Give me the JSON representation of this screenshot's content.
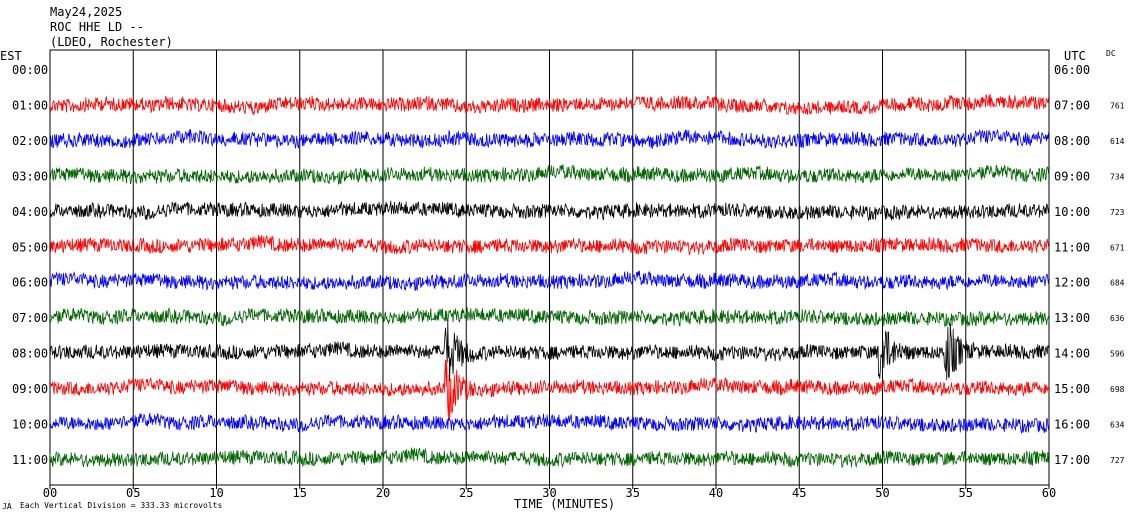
{
  "header": {
    "date": "May24,2025",
    "station": "ROC HHE LD --",
    "network": "(LDEO, Rochester)"
  },
  "axes": {
    "left_tz": "EST",
    "right_tz": "UTC",
    "dc_header": "DC",
    "xlabel": "TIME (MINUTES)",
    "scale_note_prefix": "JA",
    "scale_note": "Each Vertical Division =  333.33 microvolts"
  },
  "colors": [
    "#ff0000",
    "#0000ff",
    "#006400",
    "#000000"
  ],
  "chart_data": {
    "type": "line",
    "title": "May24,2025 ROC HHE LD -- (LDEO, Rochester)",
    "xlabel": "TIME (MINUTES)",
    "xlim": [
      0,
      60
    ],
    "x_ticks": [
      "00",
      "05",
      "10",
      "15",
      "20",
      "25",
      "30",
      "35",
      "40",
      "45",
      "50",
      "55",
      "60"
    ],
    "grid": "vertical lines every 5 minutes",
    "rows": [
      {
        "est": "00:00",
        "utc": "06:00",
        "dc": ""
      },
      {
        "est": "01:00",
        "utc": "07:00",
        "dc": "761"
      },
      {
        "est": "02:00",
        "utc": "08:00",
        "dc": "614"
      },
      {
        "est": "03:00",
        "utc": "09:00",
        "dc": "734"
      },
      {
        "est": "04:00",
        "utc": "10:00",
        "dc": "723"
      },
      {
        "est": "05:00",
        "utc": "11:00",
        "dc": "671"
      },
      {
        "est": "06:00",
        "utc": "12:00",
        "dc": "684"
      },
      {
        "est": "07:00",
        "utc": "13:00",
        "dc": "636"
      },
      {
        "est": "08:00",
        "utc": "14:00",
        "dc": "596"
      },
      {
        "est": "09:00",
        "utc": "15:00",
        "dc": "698"
      },
      {
        "est": "10:00",
        "utc": "16:00",
        "dc": "634"
      },
      {
        "est": "11:00",
        "utc": "17:00",
        "dc": "727"
      }
    ],
    "traces": [
      {
        "row": 1,
        "color": "#ff0000"
      },
      {
        "row": 2,
        "color": "#0000ff"
      },
      {
        "row": 3,
        "color": "#006400"
      },
      {
        "row": 4,
        "color": "#000000"
      },
      {
        "row": 5,
        "color": "#ff0000"
      },
      {
        "row": 6,
        "color": "#0000ff"
      },
      {
        "row": 7,
        "color": "#006400"
      },
      {
        "row": 8,
        "color": "#000000",
        "event_minutes": [
          24,
          50,
          54
        ]
      },
      {
        "row": 9,
        "color": "#ff0000",
        "event_minutes": [
          24
        ]
      },
      {
        "row": 10,
        "color": "#0000ff"
      },
      {
        "row": 11,
        "color": "#006400"
      }
    ]
  }
}
